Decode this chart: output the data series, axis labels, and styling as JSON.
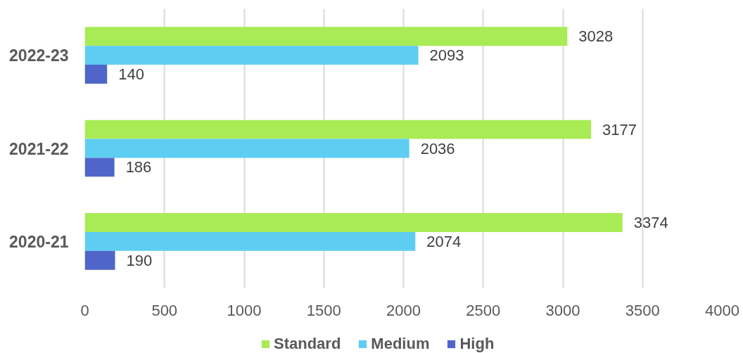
{
  "chart_data": {
    "type": "bar",
    "orientation": "horizontal",
    "categories": [
      "2022-23",
      "2021-22",
      "2020-21"
    ],
    "series": [
      {
        "name": "Standard",
        "color": "#a9eb54",
        "values": [
          3028,
          3177,
          3374
        ]
      },
      {
        "name": "Medium",
        "color": "#5ecdf2",
        "values": [
          2093,
          2036,
          2074
        ]
      },
      {
        "name": "High",
        "color": "#4f66c8",
        "values": [
          140,
          186,
          190
        ]
      }
    ],
    "xlim": [
      0,
      4000
    ],
    "xticks": [
      0,
      500,
      1000,
      1500,
      2000,
      2500,
      3000,
      3500,
      4000
    ],
    "grid": "x",
    "legend": "bottom",
    "data_labels": true
  }
}
